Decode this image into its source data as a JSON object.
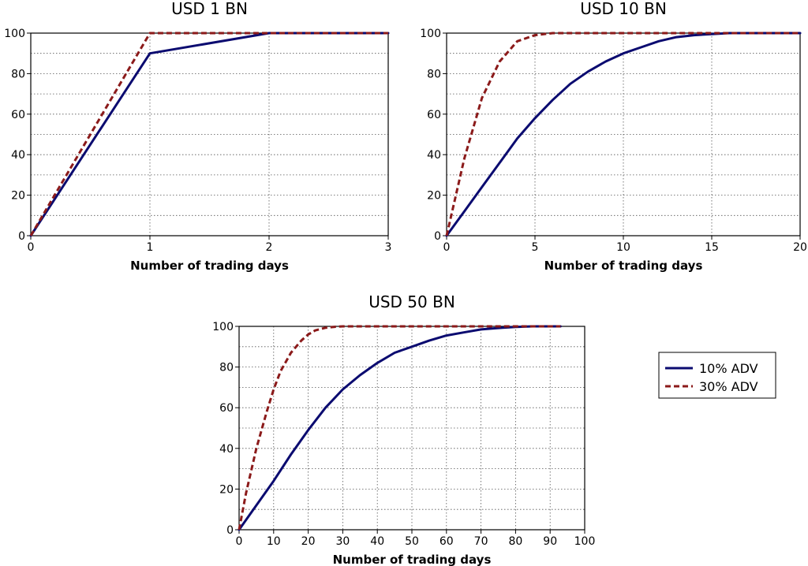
{
  "chart_data": [
    {
      "type": "line",
      "title": "USD 1 BN",
      "xlabel": "Number of trading days",
      "ylabel": "",
      "xlim": [
        0,
        3
      ],
      "ylim": [
        0,
        100
      ],
      "xticks": [
        0,
        1,
        2,
        3
      ],
      "yticks": [
        0,
        20,
        40,
        60,
        80,
        100
      ],
      "grid": true,
      "series": [
        {
          "name": "10% ADV",
          "color": "#0b0b70",
          "dash": "solid",
          "x": [
            0,
            1,
            2,
            3
          ],
          "y": [
            0,
            90,
            100,
            100
          ]
        },
        {
          "name": "30% ADV",
          "color": "#8b1a1a",
          "dash": "dashed",
          "x": [
            0,
            1,
            2,
            3
          ],
          "y": [
            0,
            100,
            100,
            100
          ]
        }
      ]
    },
    {
      "type": "line",
      "title": "USD 10 BN",
      "xlabel": "Number of trading days",
      "ylabel": "",
      "xlim": [
        0,
        20
      ],
      "ylim": [
        0,
        100
      ],
      "xticks": [
        0,
        5,
        10,
        15,
        20
      ],
      "yticks": [
        0,
        20,
        40,
        60,
        80,
        100
      ],
      "grid": true,
      "series": [
        {
          "name": "10% ADV",
          "color": "#0b0b70",
          "dash": "solid",
          "x": [
            0,
            1,
            2,
            3,
            4,
            5,
            6,
            7,
            8,
            9,
            10,
            11,
            12,
            13,
            14,
            15,
            16,
            17,
            18,
            19,
            20
          ],
          "y": [
            0,
            12,
            24,
            36,
            48,
            58,
            67,
            75,
            81,
            86,
            90,
            93,
            96,
            98,
            99,
            99.5,
            100,
            100,
            100,
            100,
            100
          ]
        },
        {
          "name": "30% ADV",
          "color": "#8b1a1a",
          "dash": "dashed",
          "x": [
            0,
            1,
            2,
            3,
            4,
            5,
            6,
            7,
            8,
            10,
            12,
            15,
            20
          ],
          "y": [
            0,
            38,
            68,
            86,
            96,
            99,
            100,
            100,
            100,
            100,
            100,
            100,
            100
          ]
        }
      ]
    },
    {
      "type": "line",
      "title": "USD 50 BN",
      "xlabel": "Number of trading days",
      "ylabel": "",
      "xlim": [
        0,
        100
      ],
      "ylim": [
        0,
        100
      ],
      "xticks": [
        0,
        10,
        20,
        30,
        40,
        50,
        60,
        70,
        80,
        90,
        100
      ],
      "yticks": [
        0,
        20,
        40,
        60,
        80,
        100
      ],
      "grid": true,
      "series": [
        {
          "name": "10% ADV",
          "color": "#0b0b70",
          "dash": "solid",
          "x": [
            0,
            5,
            10,
            15,
            20,
            25,
            30,
            35,
            40,
            45,
            50,
            55,
            60,
            65,
            70,
            75,
            80,
            85,
            90,
            93
          ],
          "y": [
            0,
            12,
            24,
            37,
            49,
            60,
            69,
            76,
            82,
            87,
            90,
            93,
            95.5,
            97,
            98.5,
            99.2,
            99.7,
            100,
            100,
            100
          ]
        },
        {
          "name": "30% ADV",
          "color": "#8b1a1a",
          "dash": "dashed",
          "x": [
            0,
            2,
            5,
            8,
            10,
            12,
            15,
            18,
            20,
            22,
            25,
            28,
            30,
            35,
            40,
            50,
            60,
            70,
            80,
            93
          ],
          "y": [
            0,
            18,
            40,
            58,
            69,
            78,
            87,
            93,
            96,
            98,
            99.3,
            99.8,
            100,
            100,
            100,
            100,
            100,
            100,
            100,
            100
          ]
        }
      ]
    }
  ],
  "legend": {
    "position": "right of bottom chart",
    "entries": [
      {
        "label": "10% ADV",
        "color": "#0b0b70",
        "dash": "solid"
      },
      {
        "label": "30% ADV",
        "color": "#8b1a1a",
        "dash": "dashed"
      }
    ]
  }
}
